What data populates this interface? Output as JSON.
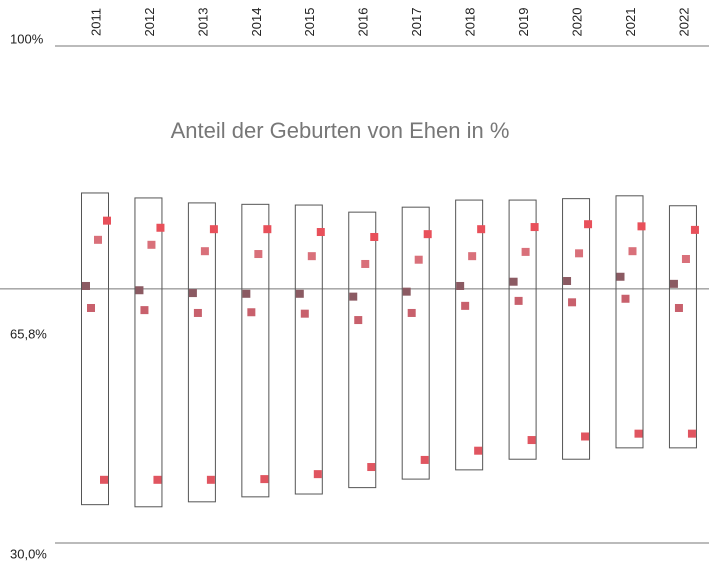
{
  "chart_data": {
    "type": "box-range",
    "title": "Anteil der Geburten von Ehen in %",
    "categories": [
      "2011",
      "2012",
      "2013",
      "2014",
      "2015",
      "2016",
      "2017",
      "2018",
      "2019",
      "2020",
      "2021",
      "2022"
    ],
    "box_top": [
      79.3,
      78.6,
      77.9,
      77.7,
      77.6,
      76.6,
      77.3,
      78.3,
      78.3,
      78.5,
      78.9,
      77.5
    ],
    "box_bottom": [
      35.4,
      35.1,
      35.8,
      36.5,
      36.9,
      37.8,
      39.0,
      40.3,
      41.8,
      41.8,
      43.4,
      43.4
    ],
    "series": [
      {
        "color": "#e8505a",
        "values": [
          75.4,
          74.4,
          74.2,
          74.2,
          73.8,
          73.1,
          73.5,
          74.2,
          74.5,
          74.9,
          74.6,
          74.1
        ]
      },
      {
        "color": "#d9707a",
        "values": [
          72.7,
          72.0,
          71.1,
          70.7,
          70.4,
          69.3,
          69.9,
          70.4,
          71.0,
          70.8,
          71.1,
          70.0
        ]
      },
      {
        "color": "#8b5a62",
        "values": [
          66.2,
          65.6,
          65.2,
          65.1,
          65.1,
          64.7,
          65.4,
          66.2,
          66.8,
          66.9,
          67.5,
          66.5
        ]
      },
      {
        "color": "#c8606c",
        "values": [
          63.1,
          62.8,
          62.4,
          62.5,
          62.3,
          61.4,
          62.4,
          63.4,
          64.1,
          63.9,
          64.4,
          63.1
        ]
      },
      {
        "color": "#e05560",
        "values": [
          38.9,
          38.9,
          38.9,
          39.0,
          39.7,
          40.7,
          41.7,
          43.0,
          44.5,
          45.0,
          45.4,
          45.4
        ]
      }
    ],
    "ylim": [
      30,
      100
    ],
    "yticks": [
      {
        "value": 100,
        "label": "100%"
      },
      {
        "value": 65.8,
        "label": "65,8%"
      },
      {
        "value": 30,
        "label": "30,0%"
      }
    ]
  }
}
